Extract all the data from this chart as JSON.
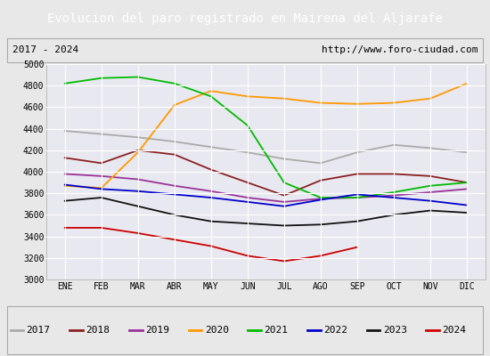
{
  "title": "Evolucion del paro registrado en Mairena del Aljarafe",
  "title_color": "#ffffff",
  "title_bg": "#4472c4",
  "subtitle_left": "2017 - 2024",
  "subtitle_right": "http://www.foro-ciudad.com",
  "months": [
    "ENE",
    "FEB",
    "MAR",
    "ABR",
    "MAY",
    "JUN",
    "JUL",
    "AGO",
    "SEP",
    "OCT",
    "NOV",
    "DIC"
  ],
  "ylim": [
    3000,
    5000
  ],
  "yticks": [
    3000,
    3200,
    3400,
    3600,
    3800,
    4000,
    4200,
    4400,
    4600,
    4800,
    5000
  ],
  "series": {
    "2017": {
      "color": "#aaaaaa",
      "data": [
        4380,
        4350,
        4320,
        4280,
        4230,
        4180,
        4120,
        4080,
        4180,
        4250,
        4220,
        4180
      ]
    },
    "2018": {
      "color": "#8B2020",
      "data": [
        4130,
        4080,
        4200,
        4160,
        4020,
        3900,
        3780,
        3920,
        3980,
        3980,
        3960,
        3900
      ]
    },
    "2019": {
      "color": "#993399",
      "data": [
        3980,
        3960,
        3930,
        3870,
        3820,
        3760,
        3720,
        3750,
        3760,
        3780,
        3810,
        3840
      ]
    },
    "2020": {
      "color": "#ff9900",
      "data": [
        3870,
        3850,
        4180,
        4620,
        4750,
        4700,
        4680,
        4640,
        4630,
        4640,
        4680,
        4820
      ]
    },
    "2021": {
      "color": "#00bb00",
      "data": [
        4820,
        4870,
        4880,
        4820,
        4700,
        4430,
        3900,
        3760,
        3760,
        3810,
        3870,
        3900
      ]
    },
    "2022": {
      "color": "#0000cc",
      "data": [
        3880,
        3840,
        3820,
        3790,
        3760,
        3720,
        3680,
        3740,
        3790,
        3760,
        3730,
        3690
      ]
    },
    "2023": {
      "color": "#111111",
      "data": [
        3730,
        3760,
        3680,
        3600,
        3540,
        3520,
        3500,
        3510,
        3540,
        3600,
        3640,
        3620
      ]
    },
    "2024": {
      "color": "#cc0000",
      "data": [
        3480,
        3480,
        3430,
        3370,
        3310,
        3220,
        3170,
        3220,
        3300,
        null,
        null,
        null
      ]
    }
  },
  "bg_color": "#e8e8e8",
  "plot_bg": "#e8e8f0",
  "grid_color": "#ffffff"
}
